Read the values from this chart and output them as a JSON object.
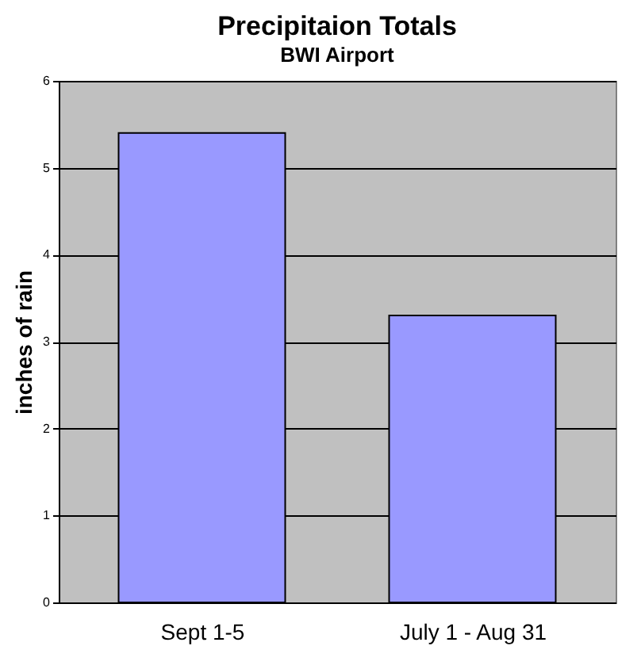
{
  "chart_data": {
    "type": "bar",
    "title": "Precipitaion Totals",
    "subtitle": "BWI Airport",
    "ylabel": "inches of rain",
    "categories": [
      "Sept 1-5",
      "July 1 - Aug 31"
    ],
    "values": [
      5.4,
      3.3
    ],
    "color": "#9999ff",
    "ylim": [
      0,
      6
    ],
    "yticks": [
      0,
      1,
      2,
      3,
      4,
      5,
      6
    ],
    "grid": "y"
  }
}
